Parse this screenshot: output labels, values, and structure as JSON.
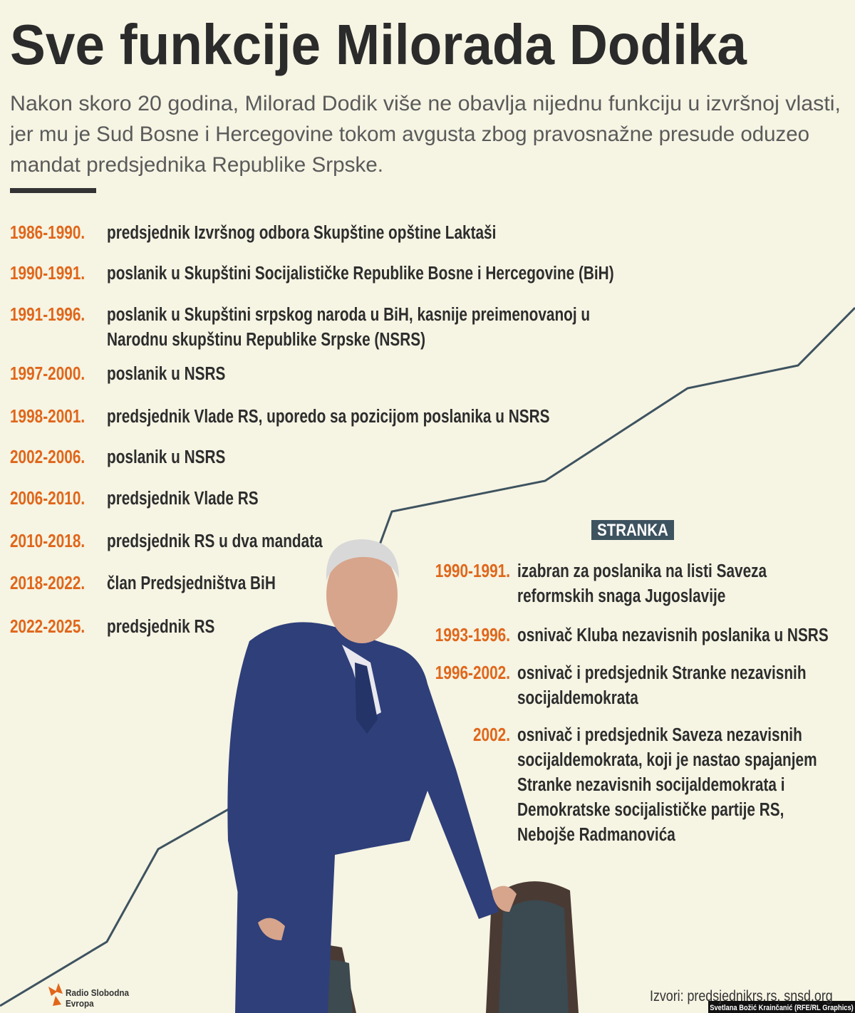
{
  "header": {
    "title": "Sve funkcije Milorada Dodika",
    "subtitle_lines": [
      "Nakon skoro 20 godina, Milorad Dodik više ne obavlja nijednu funkciju u izvršnoj vlasti,",
      "jer mu je Sud Bosne i Hercegovine tokom avgusta zbog pravosnažne presude oduzeo",
      "mandat predsjednika Republike Srpske."
    ]
  },
  "functions": [
    {
      "years": "1986-1990.",
      "lines": [
        "predsjednik Izvršnog odbora Skupštine opštine Laktaši"
      ]
    },
    {
      "years": "1990-1991.",
      "lines": [
        "poslanik u Skupštini Socijalističke Republike Bosne i Hercegovine (BiH)"
      ]
    },
    {
      "years": "1991-1996.",
      "lines": [
        "poslanik u Skupštini srpskog naroda u BiH, kasnije preimenovanoj u",
        "Narodnu skupštinu Republike Srpske (NSRS)"
      ]
    },
    {
      "years": "1997-2000.",
      "lines": [
        "poslanik u NSRS"
      ]
    },
    {
      "years": "1998-2001.",
      "lines": [
        "predsjednik Vlade RS, uporedo sa pozicijom poslanika u NSRS"
      ]
    },
    {
      "years": "2002-2006.",
      "lines": [
        "poslanik u NSRS"
      ]
    },
    {
      "years": "2006-2010.",
      "lines": [
        "predsjednik Vlade RS"
      ]
    },
    {
      "years": "2010-2018.",
      "lines": [
        "predsjednik RS u dva mandata"
      ]
    },
    {
      "years": "2018-2022.",
      "lines": [
        "član Predsjedništva BiH"
      ]
    },
    {
      "years": "2022-2025.",
      "lines": [
        "predsjednik RS"
      ]
    }
  ],
  "party": {
    "label": "STRANKA",
    "entries": [
      {
        "years": "1990-1991.",
        "lines": [
          "izabran za poslanika na listi Saveza",
          "reformskih snaga Jugoslavije"
        ]
      },
      {
        "years": "1993-1996.",
        "lines": [
          "osnivač Kluba nezavisnih poslanika u NSRS"
        ]
      },
      {
        "years": "1996-2002.",
        "lines": [
          "osnivač i predsjednik Stranke nezavisnih",
          "socijaldemokrata"
        ]
      },
      {
        "years": "2002.",
        "lines": [
          "osnivač i predsjednik Saveza nezavisnih",
          "socijaldemokrata, koji je nastao spajanjem",
          "Stranke nezavisnih socijaldemokrata i",
          "Demokratske socijalističke partije RS,",
          "Nebojše Radmanovića"
        ]
      }
    ]
  },
  "footer": {
    "logo_lines": [
      "Radio Slobodna",
      "Evropa"
    ],
    "sources": "Izvori: predsjednikrs.rs, snsd.org",
    "credit": "Svetlana Božić Krainčanić (RFE/RL Graphics)"
  }
}
